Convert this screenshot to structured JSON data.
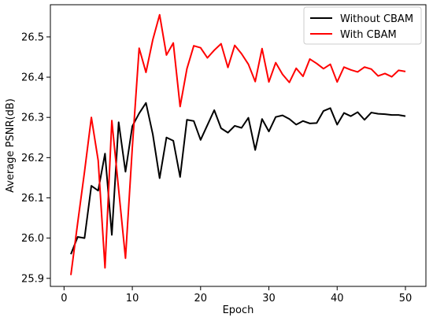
{
  "chart_data": {
    "type": "line",
    "title": "",
    "xlabel": "Epoch",
    "ylabel": "Average PSNR(dB)",
    "xlim": [
      -2,
      53
    ],
    "ylim": [
      25.88,
      26.58
    ],
    "grid": false,
    "legend_position": "top-right",
    "x_ticks": [
      0,
      10,
      20,
      30,
      40,
      50
    ],
    "y_ticks": [
      25.9,
      26.0,
      26.1,
      26.2,
      26.3,
      26.4,
      26.5
    ],
    "x": [
      1,
      2,
      3,
      4,
      5,
      6,
      7,
      8,
      9,
      10,
      11,
      12,
      13,
      14,
      15,
      16,
      17,
      18,
      19,
      20,
      21,
      22,
      23,
      24,
      25,
      26,
      27,
      28,
      29,
      30,
      31,
      32,
      33,
      34,
      35,
      36,
      37,
      38,
      39,
      40,
      41,
      42,
      43,
      44,
      45,
      46,
      47,
      48,
      49,
      50
    ],
    "series": [
      {
        "name": "Without CBAM",
        "color": "#000000",
        "values": [
          25.96,
          26.003,
          26.0,
          26.13,
          26.118,
          26.21,
          26.008,
          26.288,
          26.165,
          26.278,
          26.31,
          26.336,
          26.258,
          26.149,
          26.25,
          26.242,
          26.152,
          26.294,
          26.291,
          26.244,
          26.281,
          26.318,
          26.273,
          26.262,
          26.279,
          26.274,
          26.299,
          26.219,
          26.296,
          26.265,
          26.301,
          26.305,
          26.296,
          26.282,
          26.291,
          26.285,
          26.286,
          26.316,
          26.323,
          26.282,
          26.311,
          26.303,
          26.313,
          26.294,
          26.312,
          26.309,
          26.308,
          26.306,
          26.306,
          26.303
        ]
      },
      {
        "name": "With CBAM",
        "color": "#ff0000",
        "values": [
          25.908,
          26.038,
          26.165,
          26.3,
          26.193,
          25.926,
          26.292,
          26.12,
          25.95,
          26.225,
          26.472,
          26.412,
          26.493,
          26.555,
          26.455,
          26.485,
          26.327,
          26.421,
          26.478,
          26.473,
          26.448,
          26.467,
          26.483,
          26.424,
          26.479,
          26.458,
          26.432,
          26.389,
          26.471,
          26.388,
          26.436,
          26.407,
          26.387,
          26.422,
          26.402,
          26.445,
          26.434,
          26.421,
          26.432,
          26.388,
          26.425,
          26.418,
          26.413,
          26.425,
          26.42,
          26.403,
          26.409,
          26.401,
          26.417,
          26.414
        ]
      }
    ]
  }
}
